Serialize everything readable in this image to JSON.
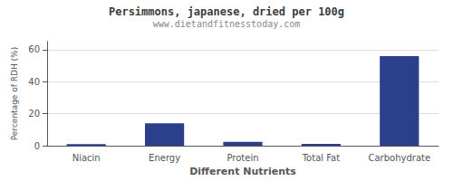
{
  "chart_data": {
    "type": "bar",
    "title": "Persimmons, japanese, dried per 100g",
    "subtitle": "www.dietandfitnesstoday.com",
    "xlabel": "Different Nutrients",
    "ylabel": "Percentage of RDH (%)",
    "categories": [
      "Niacin",
      "Energy",
      "Protein",
      "Total Fat",
      "Carbohydrate"
    ],
    "values": [
      1.0,
      14.0,
      2.5,
      1.2,
      56.0
    ],
    "color": "#2b3f8c",
    "ylim": [
      0,
      65
    ],
    "yticks": [
      0,
      20,
      40,
      60
    ],
    "grid": true
  }
}
